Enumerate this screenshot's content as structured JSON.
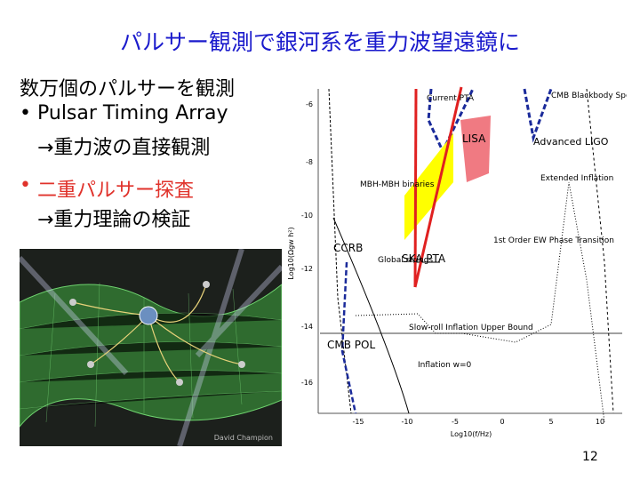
{
  "header": {
    "title": "パルサー観測で銀河系を重力波望遠鏡に"
  },
  "body": {
    "lines": [
      "数万個のパルサーを観測",
      "Pulsar Timing Array",
      "→重力波の直接観測",
      "二重パルサー探査",
      "→重力理論の検証"
    ]
  },
  "figure_left": {
    "credit": "David Champion"
  },
  "figure_right": {
    "labels": [
      "Current PTA",
      "LISA",
      "Advanced LIGO",
      "CMB Blackbody Spectrum",
      "MBH-MBH binaries",
      "Extended Inflation",
      "CCRB",
      "Global strings",
      "SKA PTA",
      "1st Order EW Phase Transition",
      "Slow-roll Inflation Upper Bound",
      "CMB POL",
      "Inflation w=0"
    ],
    "yticks": [
      "-6",
      "-8",
      "-10",
      "-12",
      "-14",
      "-16"
    ],
    "xticks": [
      "-15",
      "-10",
      "-5",
      "0",
      "5",
      "10"
    ],
    "xlabel": "Log10(f/Hz)",
    "ylabel": "Log10(Ωgw h²)"
  },
  "footer": {
    "page": "12"
  }
}
